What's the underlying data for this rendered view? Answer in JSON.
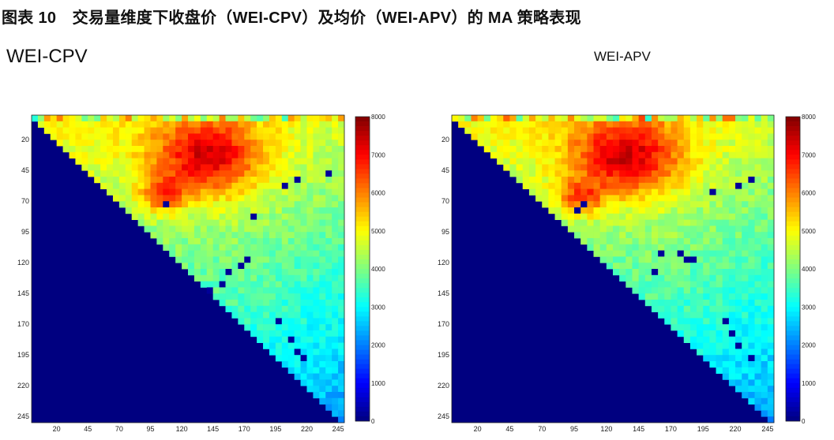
{
  "header": {
    "title": "图表 10　交易量维度下收盘价（WEI-CPV）及均价（WEI-APV）的 MA 策略表现"
  },
  "chart_data": [
    {
      "type": "heatmap",
      "title": "WEI-CPV",
      "x_ticks": [
        20,
        45,
        70,
        95,
        120,
        145,
        170,
        195,
        220,
        245
      ],
      "y_ticks": [
        20,
        45,
        70,
        95,
        120,
        145,
        170,
        195,
        220,
        245
      ],
      "xlim": [
        0,
        250
      ],
      "ylim": [
        0,
        250
      ],
      "colorbar": {
        "range": [
          0,
          8000
        ],
        "ticks": [
          0,
          1000,
          2000,
          3000,
          4000,
          5000,
          6000,
          7000,
          8000
        ],
        "colormap": "jet"
      },
      "lower_triangle_value": 0,
      "hotspot": {
        "center": [
          140,
          35
        ],
        "peak_value": 6900,
        "spread": [
          30,
          22
        ]
      },
      "secondary_hotspot": {
        "center": [
          105,
          65
        ],
        "peak_value": 6500,
        "spread": [
          12,
          10
        ]
      },
      "low_points": [
        [
          200,
          55
        ],
        [
          210,
          52
        ],
        [
          235,
          48
        ],
        [
          178,
          82
        ],
        [
          105,
          72
        ],
        [
          170,
          118
        ],
        [
          165,
          122
        ],
        [
          155,
          125
        ],
        [
          150,
          135
        ],
        [
          145,
          140
        ],
        [
          195,
          165
        ],
        [
          205,
          180
        ],
        [
          210,
          190
        ],
        [
          215,
          198
        ]
      ]
    },
    {
      "type": "heatmap",
      "title": "WEI-APV",
      "x_ticks": [
        20,
        45,
        70,
        95,
        120,
        145,
        170,
        195,
        220,
        245
      ],
      "y_ticks": [
        20,
        45,
        70,
        95,
        120,
        145,
        170,
        195,
        220,
        245
      ],
      "xlim": [
        0,
        250
      ],
      "ylim": [
        0,
        250
      ],
      "colorbar": {
        "range": [
          0,
          8000
        ],
        "ticks": [
          0,
          1000,
          2000,
          3000,
          4000,
          5000,
          6000,
          7000,
          8000
        ],
        "colormap": "jet"
      },
      "lower_triangle_value": 0,
      "hotspot": {
        "center": [
          135,
          35
        ],
        "peak_value": 7000,
        "spread": [
          30,
          22
        ]
      },
      "secondary_hotspot": {
        "center": [
          100,
          68
        ],
        "peak_value": 6400,
        "spread": [
          12,
          10
        ]
      },
      "low_points": [
        [
          200,
          62
        ],
        [
          220,
          55
        ],
        [
          230,
          50
        ],
        [
          95,
          75
        ],
        [
          100,
          70
        ],
        [
          178,
          110
        ],
        [
          180,
          115
        ],
        [
          185,
          118
        ],
        [
          160,
          112
        ],
        [
          155,
          125
        ],
        [
          210,
          165
        ],
        [
          215,
          175
        ],
        [
          220,
          185
        ],
        [
          230,
          195
        ]
      ]
    }
  ]
}
